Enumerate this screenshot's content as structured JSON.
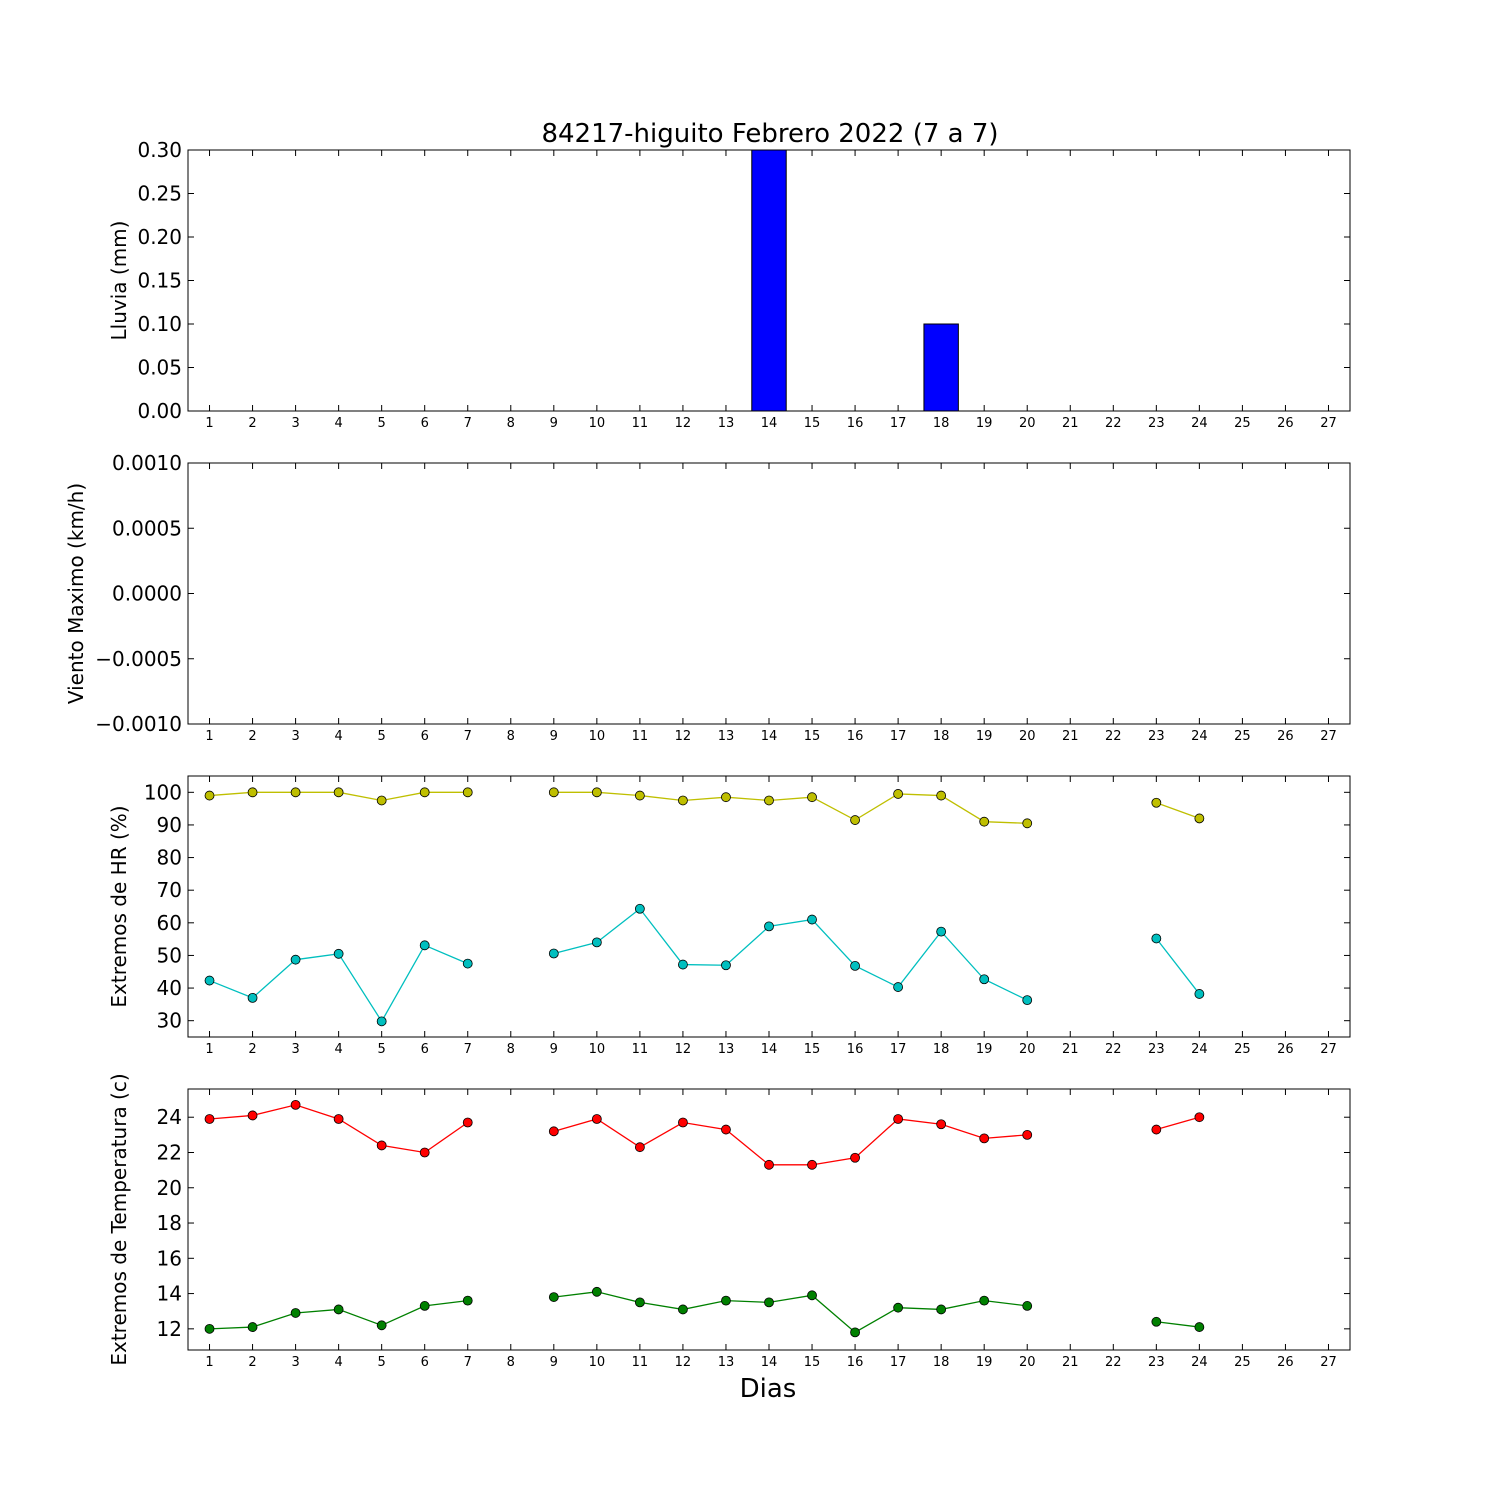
{
  "title": "84217-higuito Febrero 2022  (7 a 7)",
  "xlabel": "Dias",
  "colors": {
    "rain_bar": "#0000ff",
    "hr_max": "#bfbf00",
    "hr_min": "#00bfbf",
    "temp_max": "#ff0000",
    "temp_min": "#008000"
  },
  "chart_data": [
    {
      "type": "bar",
      "ylabel": "Lluvia (mm)",
      "ylim": [
        0,
        0.3
      ],
      "yticks": [
        "0.00",
        "0.05",
        "0.10",
        "0.15",
        "0.20",
        "0.25",
        "0.30"
      ],
      "categories": [
        "1",
        "2",
        "3",
        "4",
        "5",
        "6",
        "7",
        "8",
        "9",
        "10",
        "11",
        "12",
        "13",
        "14",
        "15",
        "16",
        "17",
        "18",
        "19",
        "20",
        "21",
        "22",
        "23",
        "24",
        "25",
        "26",
        "27"
      ],
      "values": [
        0,
        0,
        0,
        0,
        0,
        0,
        0,
        0,
        0,
        0,
        0,
        0,
        0,
        0.3,
        0,
        0,
        0,
        0.1,
        0,
        0,
        0,
        0,
        0,
        0,
        0,
        0,
        0
      ]
    },
    {
      "type": "line",
      "ylabel": "Viento Maximo (km/h)",
      "ylim": [
        -0.001,
        0.001
      ],
      "yticks": [
        "−0.0010",
        "−0.0005",
        "0.0000",
        "0.0005",
        "0.0010"
      ],
      "categories": [
        "1",
        "2",
        "3",
        "4",
        "5",
        "6",
        "7",
        "8",
        "9",
        "10",
        "11",
        "12",
        "13",
        "14",
        "15",
        "16",
        "17",
        "18",
        "19",
        "20",
        "21",
        "22",
        "23",
        "24",
        "25",
        "26",
        "27"
      ],
      "series": []
    },
    {
      "type": "line",
      "ylabel": "Extremos de HR (%)",
      "ylim": [
        25,
        105
      ],
      "yticks": [
        "30",
        "40",
        "50",
        "60",
        "70",
        "80",
        "90",
        "100"
      ],
      "categories": [
        "1",
        "2",
        "3",
        "4",
        "5",
        "6",
        "7",
        "8",
        "9",
        "10",
        "11",
        "12",
        "13",
        "14",
        "15",
        "16",
        "17",
        "18",
        "19",
        "20",
        "21",
        "22",
        "23",
        "24",
        "25",
        "26",
        "27"
      ],
      "series": [
        {
          "values": [
            99,
            100,
            100,
            100,
            97.5,
            100,
            100,
            null,
            100,
            100,
            99,
            97.5,
            98.5,
            97.5,
            98.5,
            91.5,
            99.5,
            99,
            91,
            90.5,
            null,
            null,
            96.8,
            92,
            null,
            null,
            null
          ]
        },
        {
          "values": [
            42.3,
            37,
            48.7,
            50.5,
            29.8,
            53.1,
            47.5,
            null,
            50.6,
            54,
            64.3,
            47.2,
            47,
            58.9,
            61,
            46.8,
            40.3,
            57.3,
            42.7,
            36.3,
            null,
            null,
            55.2,
            38.2,
            null,
            null,
            null
          ]
        }
      ]
    },
    {
      "type": "line",
      "ylabel": "Extremos de Temperatura (c)",
      "ylim": [
        10.8,
        25.6
      ],
      "yticks": [
        "12",
        "14",
        "16",
        "18",
        "20",
        "22",
        "24"
      ],
      "categories": [
        "1",
        "2",
        "3",
        "4",
        "5",
        "6",
        "7",
        "8",
        "9",
        "10",
        "11",
        "12",
        "13",
        "14",
        "15",
        "16",
        "17",
        "18",
        "19",
        "20",
        "21",
        "22",
        "23",
        "24",
        "25",
        "26",
        "27"
      ],
      "series": [
        {
          "values": [
            23.9,
            24.1,
            24.7,
            23.9,
            22.4,
            22,
            23.7,
            null,
            23.2,
            23.9,
            22.3,
            23.7,
            23.3,
            21.3,
            21.3,
            21.7,
            23.9,
            23.6,
            22.8,
            23,
            null,
            null,
            23.3,
            24,
            null,
            null,
            null
          ]
        },
        {
          "values": [
            12,
            12.1,
            12.9,
            13.1,
            12.2,
            13.3,
            13.6,
            null,
            13.8,
            14.1,
            13.5,
            13.1,
            13.6,
            13.5,
            13.9,
            11.8,
            13.2,
            13.1,
            13.6,
            13.3,
            null,
            null,
            12.4,
            12.1,
            null,
            null,
            null
          ]
        }
      ]
    }
  ]
}
